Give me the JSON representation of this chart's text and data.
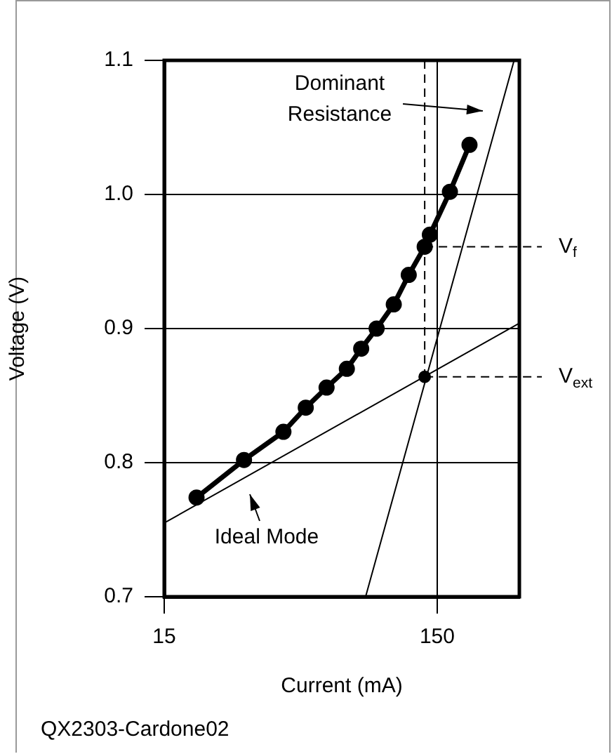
{
  "chart_data": {
    "type": "line",
    "xlabel": "Current (mA)",
    "ylabel": "Voltage (V)",
    "log": "x",
    "xlim": [
      15,
      300
    ],
    "xticks": [
      15,
      150
    ],
    "ylim": [
      0.7,
      1.1
    ],
    "yticks": [
      0.7,
      0.8,
      0.9,
      {
        "value": 1,
        "label": "1.0"
      },
      1.1
    ],
    "grid": true,
    "marker": "circle",
    "line_style": "solid",
    "series": [
      {
        "color": "#000000",
        "x": [
          19.7,
          29.4,
          41,
          49.5,
          59,
          70,
          79,
          90,
          104,
          118,
          135,
          141,
          167,
          197
        ],
        "values": [
          0.774,
          0.802,
          0.823,
          0.841,
          0.856,
          0.87,
          0.885,
          0.9,
          0.918,
          0.94,
          0.961,
          0.97,
          1.002,
          1.037
        ]
      },
      {
        "type": "line",
        "marker": "none",
        "color": "#000000",
        "x": [
          15,
          300
        ],
        "values": [
          0.755,
          0.904
        ]
      },
      {
        "type": "line",
        "marker": "none",
        "color": "#000000",
        "x": [
          82,
          287
        ],
        "values": [
          0.7,
          1.1
        ]
      },
      {
        "type": "scatter",
        "color": "#000000",
        "x": [
          135
        ],
        "values": [
          0.864
        ]
      }
    ],
    "ref_lines": [
      {
        "axis": "x",
        "value": 135,
        "line_style": "dashed"
      },
      {
        "axis": "y",
        "value": 0.961,
        "label": "V$_{f}$",
        "line_style": "dashed"
      },
      {
        "axis": "y",
        "value": 0.864,
        "label": "V$_{ext}$",
        "line_style": "dashed"
      }
    ],
    "annotations": [
      "Dominant Resistance",
      "Ideal Mode",
      "QX2303-Cardone02"
    ]
  }
}
